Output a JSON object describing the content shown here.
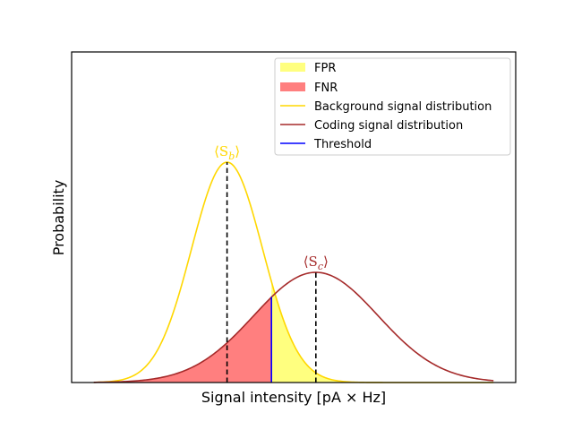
{
  "chart_data": {
    "type": "line",
    "xlabel": "Signal intensity [pA × Hz]",
    "ylabel": "Probability",
    "x_ticks_visible": false,
    "y_ticks_visible": false,
    "xlim": [
      0,
      10
    ],
    "ylim": [
      0,
      1.5
    ],
    "series": [
      {
        "name": "Background signal distribution",
        "kind": "gaussian",
        "mean": 3.5,
        "sd": 0.8,
        "peak": 1.0,
        "color": "#FFD700"
      },
      {
        "name": "Coding signal distribution",
        "kind": "gaussian",
        "mean": 5.5,
        "sd": 1.4,
        "peak": 0.5,
        "color": "#A52A2A"
      },
      {
        "name": "Threshold",
        "kind": "vertical",
        "x": 4.5,
        "color": "#0000FF"
      }
    ],
    "areas": [
      {
        "name": "FPR",
        "under": "Background signal distribution",
        "from": 4.5,
        "to": 10,
        "color": "#FFFF00"
      },
      {
        "name": "FNR",
        "under": "Coding signal distribution",
        "from": 0,
        "to": 4.5,
        "color": "#FF0000"
      }
    ],
    "annotations": [
      {
        "text": "⟨S",
        "subscript": "b",
        "suffix": "⟩",
        "x": 3.5,
        "color": "#FFD700"
      },
      {
        "text": "⟨S",
        "subscript": "c",
        "suffix": "⟩",
        "x": 5.5,
        "color": "#A52A2A"
      }
    ],
    "legend": {
      "position": "upper right",
      "entries": [
        {
          "label": "FPR",
          "kind": "patch",
          "color": "#FFFF00"
        },
        {
          "label": "FNR",
          "kind": "patch",
          "color": "#FF0000"
        },
        {
          "label": "Background signal distribution",
          "kind": "line",
          "color": "#FFD700"
        },
        {
          "label": "Coding signal distribution",
          "kind": "line",
          "color": "#A52A2A"
        },
        {
          "label": "Threshold",
          "kind": "line",
          "color": "#0000FF"
        }
      ]
    }
  }
}
